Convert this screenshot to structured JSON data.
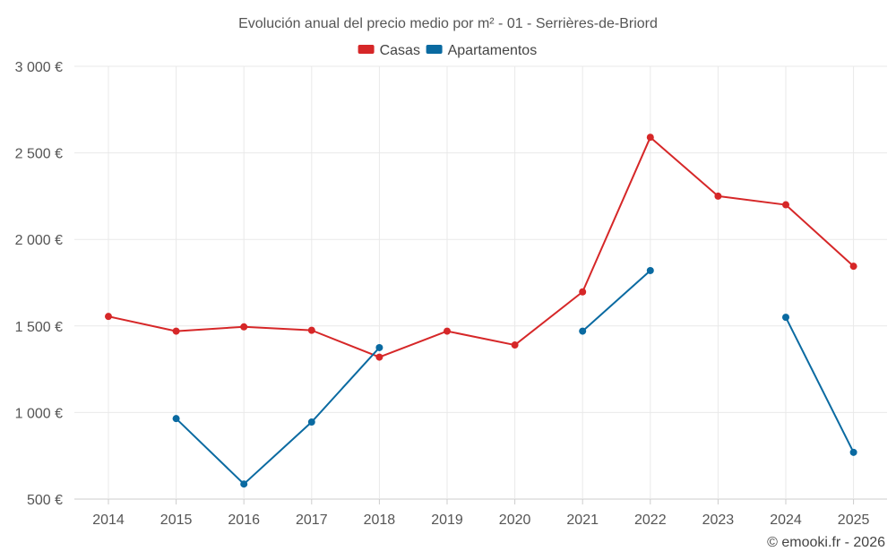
{
  "chart_data": {
    "type": "line",
    "title": "Evolución anual del precio medio por m² - 01 - Serrières-de-Briord",
    "categories": [
      "2014",
      "2015",
      "2016",
      "2017",
      "2018",
      "2019",
      "2020",
      "2021",
      "2022",
      "2023",
      "2024",
      "2025"
    ],
    "ylim": [
      500,
      3000
    ],
    "yticks": [
      500,
      1000,
      1500,
      2000,
      2500,
      3000
    ],
    "ytick_labels": [
      "500 €",
      "1 000 €",
      "1 500 €",
      "2 000 €",
      "2 500 €",
      "3 000 €"
    ],
    "grid": true,
    "legend_position": "top-center",
    "series": [
      {
        "name": "Casas",
        "color": "#d62728",
        "values": [
          1555,
          1470,
          1495,
          1475,
          1320,
          1470,
          1390,
          1697,
          2590,
          2250,
          2200,
          1845
        ]
      },
      {
        "name": "Apartamentos",
        "color": "#0a6aa1",
        "values": [
          null,
          965,
          587,
          945,
          1375,
          null,
          null,
          1470,
          1820,
          null,
          1550,
          770
        ]
      }
    ]
  },
  "credit": "© emooki.fr - 2026"
}
